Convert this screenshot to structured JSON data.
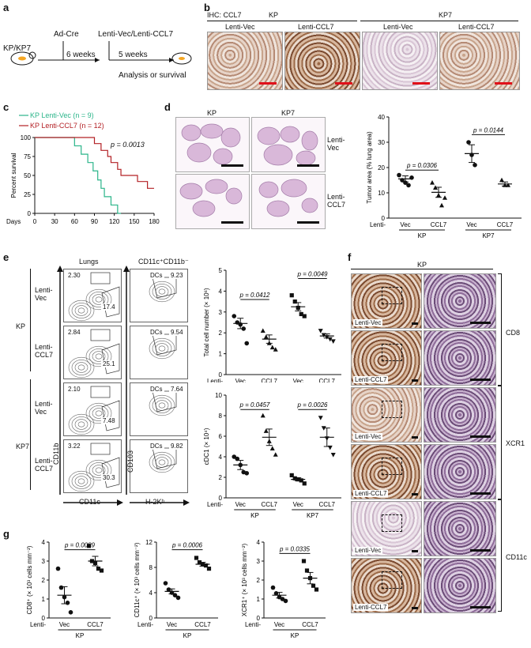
{
  "panels": {
    "a": "a",
    "b": "b",
    "c": "c",
    "d": "d",
    "e": "e",
    "f": "f",
    "g": "g"
  },
  "panel_a": {
    "mouse_label": "KP/KP7",
    "step1": "Ad-Cre",
    "interval1": "6 weeks",
    "step2": "Lenti-Vec/Lenti-CCL7",
    "interval2": "5 weeks",
    "outcome": "Analysis or survival"
  },
  "panel_b": {
    "ihc_label": "IHC: CCL7",
    "group_kp": "KP",
    "group_kp7": "KP7",
    "col1": "Lenti-Vec",
    "col2": "Lenti-CCL7",
    "col3": "Lenti-Vec",
    "col4": "Lenti-CCL7"
  },
  "panel_c": {
    "legend1": "KP Lenti-Vec (n = 9)",
    "legend2": "KP Lenti-CCL7 (n = 12)",
    "pvalue": "p = 0.0013",
    "ylabel": "Percent survival",
    "xlabel": "Days",
    "colors": {
      "vec": "#2bb58a",
      "ccl7": "#b32025"
    }
  },
  "panel_d": {
    "col1": "KP",
    "col2": "KP7",
    "row1": "Lenti-\nVec",
    "row2": "Lenti-\nCCL7",
    "p1": "p = 0.0306",
    "p2": "p = 0.0144",
    "ylabel": "Tumor area (% lung area)",
    "lenti": "Lenti-",
    "ticks_x": [
      "Vec",
      "CCL7",
      "Vec",
      "CCL7"
    ],
    "groups": [
      "KP",
      "KP7"
    ]
  },
  "panel_e": {
    "col1": "Lungs",
    "col2": "CD11c⁺CD11b⁻",
    "row_kp": "KP",
    "row_kp7": "KP7",
    "rows": [
      "Lenti-\nVec",
      "Lenti-\nCCL7",
      "Lenti-\nVec",
      "Lenti-\nCCL7"
    ],
    "lung_pct_top": [
      "2.30",
      "2.84",
      "2.10",
      "3.22"
    ],
    "lung_pct_bottom": [
      "17.4",
      "25.1",
      "7.48",
      "30.3"
    ],
    "dc_label": "DCs",
    "dc_pct": [
      "9.23",
      "9.54",
      "7.64",
      "9.82"
    ],
    "axis_y1": "CD11b",
    "axis_x1": "CD11c",
    "axis_y2": "CD103",
    "axis_x2": "H-2Kᵇ",
    "top_p1": "p = 0.0412",
    "top_p2": "p = 0.0049",
    "top_ylabel": "Total cell number (× 10⁶)",
    "bot_p1": "p = 0.0457",
    "bot_p2": "p = 0.0026",
    "bot_ylabel": "cDC1 (× 10⁴)",
    "lenti": "Lenti-",
    "ticks_x": [
      "Vec",
      "CCL7",
      "Vec",
      "CCL7"
    ],
    "groups": [
      "KP",
      "KP7"
    ]
  },
  "panel_f": {
    "title": "KP",
    "labels": [
      "Lenti-Vec",
      "Lenti-CCL7",
      "Lenti-Vec",
      "Lenti-CCL7",
      "Lenti-Vec",
      "Lenti-CCL7"
    ],
    "markers": [
      "CD8",
      "XCR1",
      "CD11c"
    ]
  },
  "panel_g": {
    "p1": "p = 0.0089",
    "p2": "p = 0.0006",
    "p3": "p = 0.0335",
    "ylabel1": "CD8⁺ (× 10³ cells mm⁻²)",
    "ylabel2": "CD11c⁺ (× 10³ cells mm⁻²)",
    "ylabel3": "XCR1⁺ (× 10³ cells mm⁻²)",
    "lenti": "Lenti-",
    "ticks_x": [
      "Vec",
      "CCL7"
    ],
    "group": "KP"
  },
  "chart_data": [
    {
      "id": "c",
      "type": "line",
      "xlabel": "Days",
      "ylabel": "Percent survival",
      "xlim": [
        0,
        180
      ],
      "ylim": [
        0,
        100
      ],
      "x_ticks": [
        0,
        30,
        60,
        90,
        120,
        150,
        180
      ],
      "y_ticks": [
        0,
        25,
        50,
        75,
        100
      ],
      "series": [
        {
          "name": "KP Lenti-Vec (n = 9)",
          "color": "#2bb58a",
          "steps": [
            [
              0,
              100
            ],
            [
              60,
              100
            ],
            [
              60,
              89
            ],
            [
              70,
              89
            ],
            [
              70,
              78
            ],
            [
              80,
              78
            ],
            [
              80,
              67
            ],
            [
              88,
              67
            ],
            [
              88,
              56
            ],
            [
              95,
              56
            ],
            [
              95,
              44
            ],
            [
              100,
              44
            ],
            [
              100,
              33
            ],
            [
              105,
              33
            ],
            [
              105,
              22
            ],
            [
              115,
              22
            ],
            [
              115,
              11
            ],
            [
              125,
              11
            ],
            [
              125,
              0
            ],
            [
              130,
              0
            ]
          ]
        },
        {
          "name": "KP Lenti-CCL7 (n = 12)",
          "color": "#b32025",
          "steps": [
            [
              0,
              100
            ],
            [
              90,
              100
            ],
            [
              90,
              92
            ],
            [
              100,
              92
            ],
            [
              100,
              83
            ],
            [
              110,
              83
            ],
            [
              110,
              75
            ],
            [
              115,
              75
            ],
            [
              115,
              67
            ],
            [
              125,
              67
            ],
            [
              125,
              58
            ],
            [
              130,
              58
            ],
            [
              130,
              50
            ],
            [
              155,
              50
            ],
            [
              155,
              42
            ],
            [
              170,
              42
            ],
            [
              170,
              33
            ],
            [
              180,
              33
            ]
          ]
        }
      ]
    },
    {
      "id": "d",
      "type": "scatter",
      "ylabel": "Tumor area (% lung area)",
      "ylim": [
        0,
        40
      ],
      "y_ticks": [
        0,
        10,
        20,
        30,
        40
      ],
      "categories": [
        "Vec",
        "CCL7",
        "Vec",
        "CCL7"
      ],
      "points": [
        [
          17,
          15,
          14,
          13,
          16
        ],
        [
          14,
          12,
          9,
          5,
          8
        ],
        [
          30,
          25,
          21
        ],
        [
          15,
          13,
          13
        ]
      ],
      "means": [
        15.5,
        10.2,
        25.5,
        13.5
      ],
      "sem": [
        1.2,
        2.0,
        3.5,
        0.8
      ]
    },
    {
      "id": "e-top",
      "type": "scatter",
      "ylabel": "Total cell number (× 10⁶)",
      "ylim": [
        0,
        5
      ],
      "y_ticks": [
        0,
        1,
        2,
        3,
        4,
        5
      ],
      "categories": [
        "Vec",
        "CCL7",
        "Vec",
        "CCL7"
      ],
      "points": [
        [
          2.8,
          2.5,
          2.4,
          2.2,
          1.5
        ],
        [
          2.1,
          1.8,
          1.5,
          1.3,
          1.2
        ],
        [
          3.8,
          3.5,
          3.2,
          2.9,
          2.8
        ],
        [
          2.1,
          1.9,
          1.8,
          1.7,
          1.6
        ]
      ],
      "means": [
        2.45,
        1.7,
        3.25,
        1.85
      ],
      "sem": [
        0.25,
        0.2,
        0.2,
        0.1
      ]
    },
    {
      "id": "e-bottom",
      "type": "scatter",
      "ylabel": "cDC1 (× 10⁴)",
      "ylim": [
        0,
        10
      ],
      "y_ticks": [
        0,
        2,
        4,
        6,
        8,
        10
      ],
      "categories": [
        "Vec",
        "CCL7",
        "Vec",
        "CCL7"
      ],
      "points": [
        [
          4.0,
          3.8,
          3.2,
          2.5,
          2.4
        ],
        [
          8.0,
          6.5,
          5.5,
          4.8,
          4.2
        ],
        [
          2.2,
          1.9,
          1.8,
          1.7,
          1.4
        ],
        [
          7.8,
          6.8,
          5.8,
          4.9,
          4.2
        ]
      ],
      "means": [
        3.2,
        5.9,
        1.8,
        5.9
      ],
      "sem": [
        0.45,
        0.8,
        0.15,
        0.9
      ]
    },
    {
      "id": "g1",
      "type": "scatter",
      "ylabel": "CD8⁺ (× 10³ cells mm⁻²)",
      "ylim": [
        0,
        4
      ],
      "y_ticks": [
        0,
        1,
        2,
        3,
        4
      ],
      "categories": [
        "Vec",
        "CCL7"
      ],
      "points": [
        [
          2.6,
          1.6,
          1.1,
          0.8,
          0.3
        ],
        [
          3.8,
          3.0,
          2.9,
          2.6,
          2.5
        ]
      ],
      "means": [
        1.2,
        3.0
      ],
      "sem": [
        0.45,
        0.25
      ]
    },
    {
      "id": "g2",
      "type": "scatter",
      "ylabel": "CD11c⁺ (× 10³ cells mm⁻²)",
      "ylim": [
        0,
        12
      ],
      "y_ticks": [
        0,
        4,
        8,
        12
      ],
      "categories": [
        "Vec",
        "CCL7"
      ],
      "points": [
        [
          5.5,
          4.5,
          4.0,
          3.6,
          3.2
        ],
        [
          9.5,
          8.8,
          8.5,
          8.3,
          7.8
        ]
      ],
      "means": [
        4.2,
        8.5
      ],
      "sem": [
        0.4,
        0.3
      ]
    },
    {
      "id": "g3",
      "type": "scatter",
      "ylabel": "XCR1⁺ (× 10³ cells mm⁻²)",
      "ylim": [
        0,
        4
      ],
      "y_ticks": [
        0,
        1,
        2,
        3,
        4
      ],
      "categories": [
        "Vec",
        "CCL7"
      ],
      "points": [
        [
          1.6,
          1.3,
          1.1,
          1.0,
          0.9
        ],
        [
          3.0,
          2.5,
          2.1,
          1.7,
          1.5
        ]
      ],
      "means": [
        1.2,
        2.1
      ],
      "sem": [
        0.15,
        0.3
      ]
    }
  ]
}
